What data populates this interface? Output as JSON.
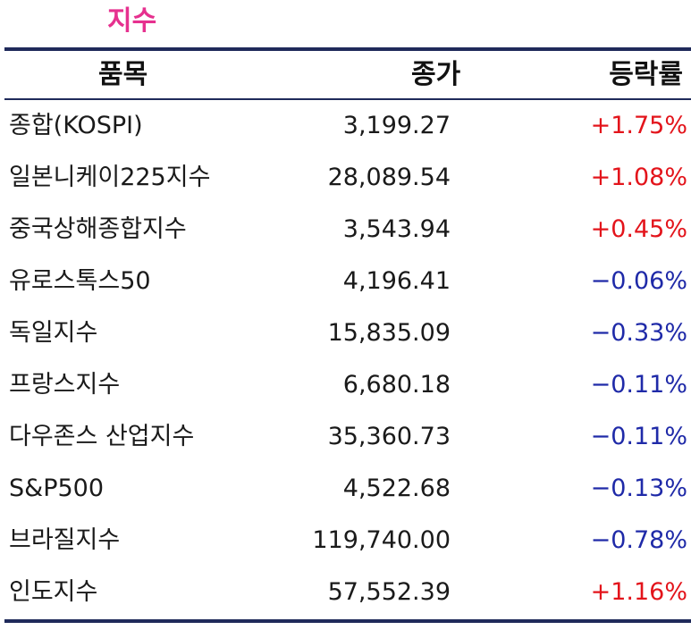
{
  "title": "지수",
  "header": {
    "name": "품목",
    "close": "종가",
    "change": "등락률"
  },
  "rows": [
    {
      "name": "종합(KOSPI)",
      "close": "3,199.27",
      "change": "+1.75%",
      "direction": "up"
    },
    {
      "name": "일본니케이225지수",
      "close": "28,089.54",
      "change": "+1.08%",
      "direction": "up"
    },
    {
      "name": "중국상해종합지수",
      "close": "3,543.94",
      "change": "+0.45%",
      "direction": "up"
    },
    {
      "name": "유로스톡스50",
      "close": "4,196.41",
      "change": "−0.06%",
      "direction": "down"
    },
    {
      "name": "독일지수",
      "close": "15,835.09",
      "change": "−0.33%",
      "direction": "down"
    },
    {
      "name": "프랑스지수",
      "close": "6,680.18",
      "change": "−0.11%",
      "direction": "down"
    },
    {
      "name": "다우존스 산업지수",
      "close": "35,360.73",
      "change": "−0.11%",
      "direction": "down"
    },
    {
      "name": "S&P500",
      "close": "4,522.68",
      "change": "−0.13%",
      "direction": "down"
    },
    {
      "name": "브라질지수",
      "close": "119,740.00",
      "change": "−0.78%",
      "direction": "down"
    },
    {
      "name": "인도지수",
      "close": "57,552.39",
      "change": "+1.16%",
      "direction": "up"
    }
  ],
  "colors": {
    "title": "#e6318f",
    "rule": "#1f2a5a",
    "up": "#e3141b",
    "down": "#1f2aa8"
  }
}
